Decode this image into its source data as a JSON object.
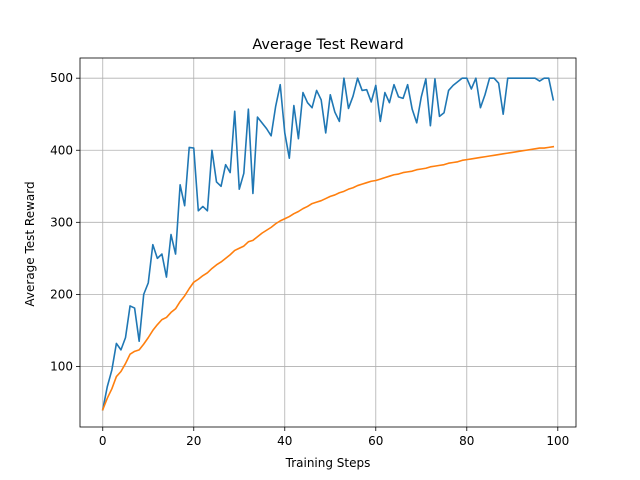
{
  "chart_data": {
    "type": "line",
    "title": "Average Test Reward",
    "xlabel": "Training Steps",
    "ylabel": "Average Test Reward",
    "xlim": [
      -5,
      104
    ],
    "ylim": [
      16,
      528
    ],
    "xticks": [
      0,
      20,
      40,
      60,
      80,
      100
    ],
    "yticks": [
      100,
      200,
      300,
      400,
      500
    ],
    "grid": true,
    "series": [
      {
        "color": "#1f77b4",
        "x": [
          0,
          1,
          2,
          3,
          4,
          5,
          6,
          7,
          8,
          9,
          10,
          11,
          12,
          13,
          14,
          15,
          16,
          17,
          18,
          19,
          20,
          21,
          22,
          23,
          24,
          25,
          26,
          27,
          28,
          29,
          30,
          31,
          32,
          33,
          34,
          35,
          36,
          37,
          38,
          39,
          40,
          41,
          42,
          43,
          44,
          45,
          46,
          47,
          48,
          49,
          50,
          51,
          52,
          53,
          54,
          55,
          56,
          57,
          58,
          59,
          60,
          61,
          62,
          63,
          64,
          65,
          66,
          67,
          68,
          69,
          70,
          71,
          72,
          73,
          74,
          75,
          76,
          77,
          78,
          79,
          80,
          81,
          82,
          83,
          84,
          85,
          86,
          87,
          88,
          89,
          90,
          91,
          92,
          93,
          94,
          95,
          96,
          97,
          98,
          99
        ],
        "y": [
          40,
          72,
          95,
          132,
          123,
          140,
          184,
          181,
          135,
          200,
          216,
          269,
          250,
          256,
          224,
          283,
          256,
          352,
          323,
          404,
          403,
          316,
          322,
          316,
          400,
          356,
          350,
          380,
          369,
          454,
          346,
          368,
          457,
          340,
          446,
          438,
          430,
          420,
          461,
          491,
          424,
          389,
          462,
          416,
          480,
          466,
          459,
          483,
          470,
          424,
          477,
          453,
          440,
          500,
          458,
          475,
          500,
          483,
          484,
          467,
          490,
          440,
          480,
          466,
          491,
          474,
          472,
          491,
          457,
          438,
          474,
          499,
          434,
          499,
          447,
          452,
          483,
          490,
          495,
          500,
          500,
          485,
          500,
          459,
          477,
          500,
          500,
          493,
          450,
          500,
          500,
          500,
          500,
          500,
          500,
          500,
          496,
          500,
          500,
          470
        ]
      },
      {
        "color": "#ff7f0e",
        "x": [
          0,
          1,
          2,
          3,
          4,
          5,
          6,
          7,
          8,
          9,
          10,
          11,
          12,
          13,
          14,
          15,
          16,
          17,
          18,
          19,
          20,
          21,
          22,
          23,
          24,
          25,
          26,
          27,
          28,
          29,
          30,
          31,
          32,
          33,
          34,
          35,
          36,
          37,
          38,
          39,
          40,
          41,
          42,
          43,
          44,
          45,
          46,
          47,
          48,
          49,
          50,
          51,
          52,
          53,
          54,
          55,
          56,
          57,
          58,
          59,
          60,
          61,
          62,
          63,
          64,
          65,
          66,
          67,
          68,
          69,
          70,
          71,
          72,
          73,
          74,
          75,
          76,
          77,
          78,
          79,
          80,
          81,
          82,
          83,
          84,
          85,
          86,
          87,
          88,
          89,
          90,
          91,
          92,
          93,
          94,
          95,
          96,
          97,
          98,
          99
        ],
        "y": [
          40,
          56,
          69,
          86,
          93,
          104,
          117,
          121,
          123,
          131,
          140,
          150,
          158,
          165,
          168,
          175,
          180,
          190,
          198,
          208,
          217,
          221,
          226,
          230,
          236,
          241,
          245,
          250,
          255,
          261,
          264,
          267,
          273,
          275,
          280,
          285,
          289,
          293,
          298,
          302,
          305,
          308,
          312,
          315,
          319,
          322,
          326,
          328,
          330,
          333,
          336,
          338,
          341,
          343,
          346,
          348,
          351,
          353,
          355,
          357,
          358,
          360,
          362,
          364,
          366,
          367,
          369,
          370,
          371,
          373,
          374,
          375,
          377,
          378,
          379,
          380,
          382,
          383,
          384,
          386,
          387,
          388,
          389,
          390,
          391,
          392,
          393,
          394,
          395,
          396,
          397,
          398,
          399,
          400,
          401,
          402,
          403,
          403,
          404,
          405
        ]
      }
    ]
  }
}
